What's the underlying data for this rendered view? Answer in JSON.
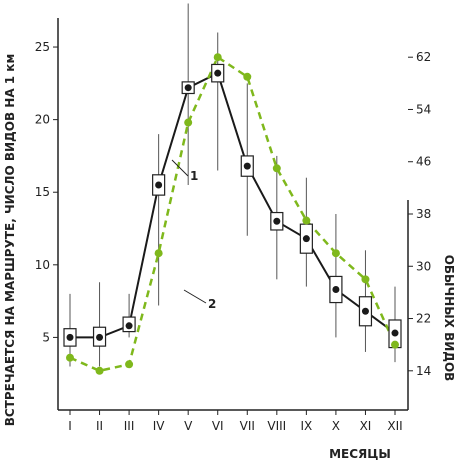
{
  "chart_data": {
    "type": "line",
    "x": [
      "I",
      "II",
      "III",
      "IV",
      "V",
      "VI",
      "VII",
      "VIII",
      "IX",
      "X",
      "XI",
      "XII"
    ],
    "xlabel": "МЕСЯЦЫ",
    "ylabel_left": "ВСТРЕЧАЕТСЯ НА МАРШРУТЕ, ЧИСЛО ВИДОВ НА 1 км",
    "ylabel_right": "ОБЫЧНЫХ ВИДОВ",
    "ylim_left": [
      0,
      27
    ],
    "yticks_left": [
      5,
      10,
      15,
      20,
      25
    ],
    "ylim_right": [
      8,
      68
    ],
    "yticks_right": [
      14,
      22,
      30,
      38,
      46,
      54,
      62
    ],
    "grid": false,
    "series": [
      {
        "name": "1",
        "axis": "left",
        "color": "#1a1a1a",
        "style": "solid",
        "values": [
          5.0,
          5.0,
          5.8,
          15.5,
          22.2,
          23.2,
          16.8,
          13.0,
          11.8,
          8.3,
          6.8,
          5.3
        ],
        "box_low": [
          4.4,
          4.4,
          5.4,
          14.8,
          21.8,
          22.6,
          16.1,
          12.4,
          10.8,
          7.4,
          5.8,
          4.3
        ],
        "box_high": [
          5.6,
          5.7,
          6.4,
          16.2,
          22.6,
          23.8,
          17.5,
          13.6,
          12.8,
          9.2,
          7.8,
          6.2
        ],
        "range_min": [
          3.0,
          3.0,
          5.0,
          7.2,
          15.5,
          16.5,
          12.0,
          9.0,
          8.5,
          5.0,
          4.0,
          3.3
        ],
        "range_max": [
          8.0,
          8.8,
          8.0,
          19.0,
          28.0,
          26.0,
          22.5,
          17.5,
          16.0,
          13.5,
          11.0,
          8.5
        ]
      },
      {
        "name": "2",
        "axis": "right",
        "color": "#7fb81c",
        "style": "dashed",
        "values": [
          16,
          14,
          15,
          32,
          52,
          62,
          59,
          45,
          37,
          32,
          28,
          18
        ]
      }
    ],
    "annotations": [
      "1",
      "2"
    ]
  }
}
